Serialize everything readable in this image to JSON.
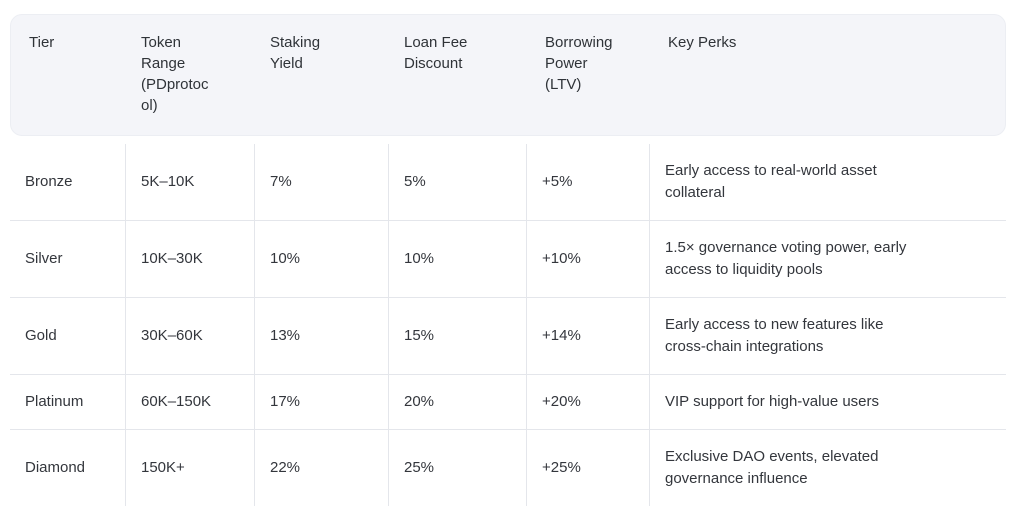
{
  "colors": {
    "header_background": "#f4f5f9",
    "border": "#e4e6eb",
    "body_text": "#33363c",
    "header_text": "#2f3338",
    "page_background": "#ffffff"
  },
  "table": {
    "columns": [
      {
        "key": "tier",
        "label": "Tier"
      },
      {
        "key": "token_range",
        "label": "Token Range (PDprotocol)"
      },
      {
        "key": "staking_yield",
        "label": "Staking Yield"
      },
      {
        "key": "loan_fee_discount",
        "label": "Loan Fee Discount"
      },
      {
        "key": "borrowing_power",
        "label": "Borrowing Power (LTV)"
      },
      {
        "key": "key_perks",
        "label": "Key Perks"
      }
    ],
    "rows": [
      {
        "tier": "Bronze",
        "token_range": "5K–10K",
        "staking_yield": "7%",
        "loan_fee_discount": "5%",
        "borrowing_power": "+5%",
        "key_perks": "Early access to real-world asset collateral"
      },
      {
        "tier": "Silver",
        "token_range": "10K–30K",
        "staking_yield": "10%",
        "loan_fee_discount": "10%",
        "borrowing_power": "+10%",
        "key_perks": "1.5× governance voting power, early access to liquidity pools"
      },
      {
        "tier": "Gold",
        "token_range": "30K–60K",
        "staking_yield": "13%",
        "loan_fee_discount": "15%",
        "borrowing_power": "+14%",
        "key_perks": "Early access to new features like cross-chain integrations"
      },
      {
        "tier": "Platinum",
        "token_range": "60K–150K",
        "staking_yield": "17%",
        "loan_fee_discount": "20%",
        "borrowing_power": "+20%",
        "key_perks": "VIP support for high-value users"
      },
      {
        "tier": "Diamond",
        "token_range": "150K+",
        "staking_yield": "22%",
        "loan_fee_discount": "25%",
        "borrowing_power": "+25%",
        "key_perks": "Exclusive DAO events, elevated governance influence"
      }
    ]
  }
}
